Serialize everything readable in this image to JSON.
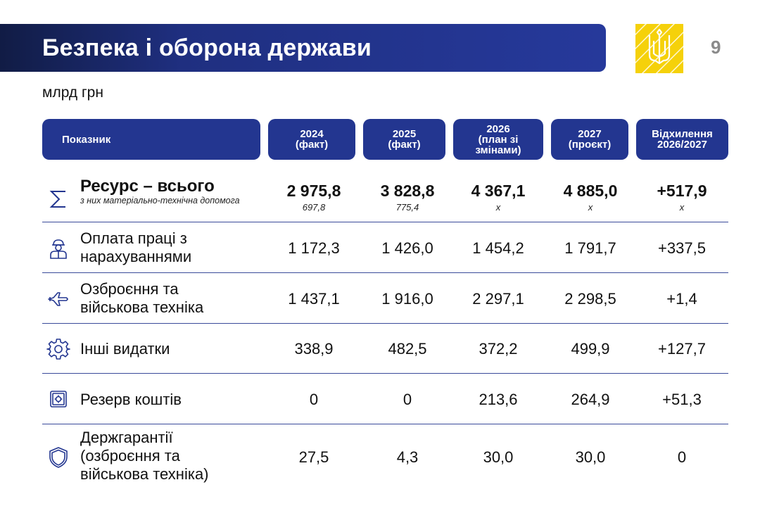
{
  "header": {
    "title": "Безпека і оборона держави",
    "page_number": "9",
    "emblem": "trident-emblem"
  },
  "units": "млрд грн",
  "table": {
    "columns": [
      "Показник",
      "2024\n(факт)",
      "2025\n(факт)",
      "2026\n(план зі\nзмінами)",
      "2027\n(проєкт)",
      "Відхилення\n2026/2027"
    ],
    "total": {
      "label": "Ресурс – всього",
      "note": "з них матеріально-технічна допомога",
      "icon": "sigma-icon",
      "values": [
        "2 975,8",
        "3 828,8",
        "4 367,1",
        "4 885,0",
        "+517,9"
      ],
      "sub_values": [
        "697,8",
        "775,4",
        "х",
        "х",
        "х"
      ]
    },
    "rows": [
      {
        "label": "Оплата праці з\nнарахуваннями",
        "icon": "worker-icon",
        "values": [
          "1 172,3",
          "1 426,0",
          "1 454,2",
          "1 791,7",
          "+337,5"
        ]
      },
      {
        "label": "Озброєння та\nвійськова техніка",
        "icon": "aircraft-icon",
        "values": [
          "1 437,1",
          "1 916,0",
          "2 297,1",
          "2 298,5",
          "+1,4"
        ]
      },
      {
        "label": "Інші видатки",
        "icon": "gear-icon",
        "values": [
          "338,9",
          "482,5",
          "372,2",
          "499,9",
          "+127,7"
        ]
      },
      {
        "label": "Резерв коштів",
        "icon": "safe-icon",
        "values": [
          "0",
          "0",
          "213,6",
          "264,9",
          "+51,3"
        ]
      },
      {
        "label": "Держгарантії\n(озброєння та\nвійськова техніка)",
        "icon": "shield-icon",
        "values": [
          "27,5",
          "4,3",
          "30,0",
          "30,0",
          "0"
        ]
      }
    ]
  },
  "colors": {
    "primary": "#233690",
    "title_dark": "#111c45",
    "emblem_yellow": "#f5d10a",
    "page_number": "#8a8a8a"
  }
}
